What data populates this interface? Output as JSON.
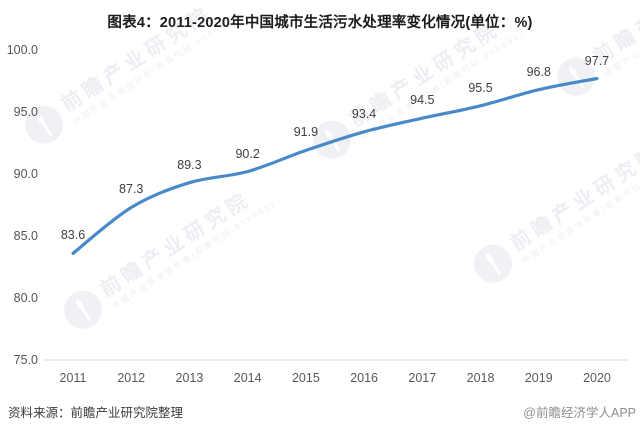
{
  "title": "图表4：2011-2020年中国城市生活污水处理率变化情况(单位：%)",
  "chart_data": {
    "type": "line",
    "title": "图表4：2011-2020年中国城市生活污水处理率变化情况(单位：%)",
    "unit": "%",
    "categories": [
      "2011",
      "2012",
      "2013",
      "2014",
      "2015",
      "2016",
      "2017",
      "2018",
      "2019",
      "2020"
    ],
    "values": [
      83.6,
      87.3,
      89.3,
      90.2,
      91.9,
      93.4,
      94.5,
      95.5,
      96.8,
      97.7
    ],
    "yticks": [
      100.0,
      95.0,
      90.0,
      85.0,
      80.0,
      75.0
    ],
    "ylim": [
      75.0,
      100.0
    ],
    "xlabel": "",
    "ylabel": "",
    "grid": false,
    "legend_position": "none",
    "line_color": "#4a89c7",
    "axis_line_color": "#d9d9d9",
    "data_label_color": "#3f3f3f",
    "tick_label_color": "#595959"
  },
  "footer": {
    "source": "资料来源：前瞻产业研究院整理",
    "credit": "@前瞻经济学人APP"
  },
  "watermark": {
    "brand": "前瞻产业研究院",
    "tagline": "中国产业咨询领导者(股票代码:839599)"
  }
}
